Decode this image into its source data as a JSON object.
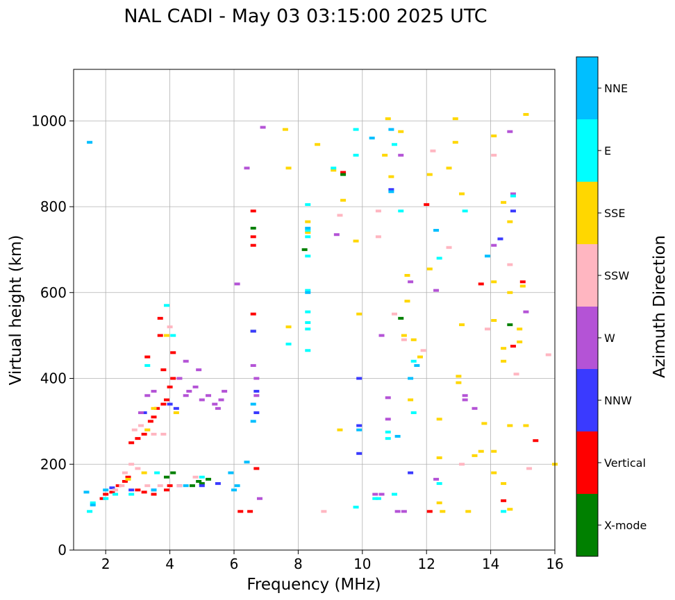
{
  "chart_data": {
    "type": "scatter",
    "title": "NAL CADI - May 03 03:15:00 2025 UTC",
    "xlabel": "Frequency (MHz)",
    "ylabel": "Virtual height (km)",
    "xlim": [
      1,
      16
    ],
    "ylim": [
      0,
      1120
    ],
    "xticks": [
      2,
      4,
      6,
      8,
      10,
      12,
      14,
      16
    ],
    "yticks": [
      0,
      200,
      400,
      600,
      800,
      1000
    ],
    "grid": true,
    "colorbar": {
      "label": "Azimuth Direction",
      "categories": [
        {
          "name": "X-mode",
          "color": "#008000"
        },
        {
          "name": "Vertical",
          "color": "#ff0000"
        },
        {
          "name": "NNW",
          "color": "#3a3aff"
        },
        {
          "name": "W",
          "color": "#b453d6"
        },
        {
          "name": "SSW",
          "color": "#ffb6c1"
        },
        {
          "name": "SSE",
          "color": "#ffd700"
        },
        {
          "name": "E",
          "color": "#00ffff"
        },
        {
          "name": "NNE",
          "color": "#00bfff"
        }
      ]
    },
    "series": [
      {
        "name": "Vertical",
        "points": [
          [
            1.9,
            120
          ],
          [
            2.0,
            130
          ],
          [
            2.2,
            135
          ],
          [
            2.4,
            150
          ],
          [
            2.6,
            160
          ],
          [
            2.7,
            170
          ],
          [
            3.0,
            140
          ],
          [
            3.2,
            135
          ],
          [
            3.5,
            130
          ],
          [
            3.9,
            140
          ],
          [
            4.0,
            150
          ],
          [
            2.8,
            250
          ],
          [
            3.0,
            260
          ],
          [
            3.2,
            270
          ],
          [
            3.4,
            300
          ],
          [
            3.5,
            310
          ],
          [
            3.6,
            330
          ],
          [
            3.8,
            340
          ],
          [
            3.9,
            350
          ],
          [
            4.0,
            380
          ],
          [
            4.1,
            400
          ],
          [
            3.8,
            420
          ],
          [
            3.7,
            500
          ],
          [
            3.7,
            540
          ],
          [
            3.3,
            450
          ],
          [
            4.1,
            460
          ],
          [
            6.6,
            790
          ],
          [
            6.6,
            730
          ],
          [
            6.6,
            710
          ],
          [
            6.6,
            550
          ],
          [
            6.7,
            190
          ],
          [
            6.2,
            90
          ],
          [
            6.5,
            90
          ],
          [
            9.4,
            880
          ],
          [
            12.0,
            805
          ],
          [
            12.1,
            90
          ],
          [
            13.7,
            620
          ],
          [
            14.4,
            115
          ],
          [
            14.7,
            475
          ],
          [
            15.0,
            625
          ],
          [
            15.4,
            255
          ]
        ]
      },
      {
        "name": "X-mode",
        "points": [
          [
            4.9,
            160
          ],
          [
            5.0,
            155
          ],
          [
            4.7,
            150
          ],
          [
            5.2,
            165
          ],
          [
            4.1,
            180
          ],
          [
            3.9,
            170
          ],
          [
            6.6,
            750
          ],
          [
            6.6,
            510
          ],
          [
            8.2,
            700
          ],
          [
            9.4,
            875
          ],
          [
            11.2,
            540
          ],
          [
            14.6,
            525
          ]
        ]
      },
      {
        "name": "NNW",
        "points": [
          [
            2.2,
            145
          ],
          [
            2.8,
            140
          ],
          [
            3.5,
            140
          ],
          [
            4.3,
            150
          ],
          [
            5.0,
            150
          ],
          [
            5.5,
            155
          ],
          [
            4.0,
            340
          ],
          [
            4.2,
            330
          ],
          [
            3.2,
            320
          ],
          [
            6.6,
            510
          ],
          [
            6.7,
            370
          ],
          [
            6.7,
            320
          ],
          [
            9.9,
            400
          ],
          [
            9.9,
            290
          ],
          [
            9.9,
            225
          ],
          [
            10.9,
            840
          ],
          [
            14.7,
            790
          ],
          [
            14.3,
            725
          ],
          [
            11.5,
            180
          ]
        ]
      },
      {
        "name": "W",
        "points": [
          [
            3.3,
            360
          ],
          [
            3.5,
            370
          ],
          [
            4.5,
            360
          ],
          [
            4.6,
            370
          ],
          [
            4.8,
            380
          ],
          [
            5.0,
            350
          ],
          [
            5.2,
            360
          ],
          [
            5.4,
            340
          ],
          [
            5.6,
            350
          ],
          [
            5.7,
            370
          ],
          [
            5.5,
            330
          ],
          [
            4.3,
            400
          ],
          [
            4.5,
            440
          ],
          [
            4.9,
            420
          ],
          [
            3.1,
            320
          ],
          [
            6.6,
            430
          ],
          [
            6.7,
            400
          ],
          [
            6.7,
            360
          ],
          [
            6.1,
            620
          ],
          [
            6.4,
            890
          ],
          [
            6.9,
            985
          ],
          [
            6.8,
            120
          ],
          [
            9.2,
            735
          ],
          [
            10.6,
            500
          ],
          [
            10.8,
            355
          ],
          [
            10.8,
            305
          ],
          [
            10.4,
            130
          ],
          [
            10.6,
            130
          ],
          [
            11.1,
            90
          ],
          [
            11.3,
            90
          ],
          [
            11.2,
            920
          ],
          [
            11.5,
            625
          ],
          [
            12.3,
            605
          ],
          [
            13.2,
            350
          ],
          [
            13.5,
            330
          ],
          [
            14.1,
            710
          ],
          [
            14.6,
            975
          ],
          [
            14.7,
            830
          ],
          [
            15.1,
            555
          ],
          [
            12.3,
            165
          ],
          [
            13.2,
            360
          ]
        ]
      },
      {
        "name": "SSW",
        "points": [
          [
            2.3,
            140
          ],
          [
            2.5,
            150
          ],
          [
            2.6,
            180
          ],
          [
            2.8,
            200
          ],
          [
            3.0,
            190
          ],
          [
            3.3,
            150
          ],
          [
            3.7,
            150
          ],
          [
            2.9,
            280
          ],
          [
            3.1,
            290
          ],
          [
            3.3,
            280
          ],
          [
            3.5,
            270
          ],
          [
            3.8,
            270
          ],
          [
            4.0,
            520
          ],
          [
            4.3,
            150
          ],
          [
            4.8,
            170
          ],
          [
            8.8,
            90
          ],
          [
            9.3,
            780
          ],
          [
            10.5,
            790
          ],
          [
            10.5,
            730
          ],
          [
            11.0,
            550
          ],
          [
            11.3,
            490
          ],
          [
            11.9,
            465
          ],
          [
            12.2,
            930
          ],
          [
            12.7,
            705
          ],
          [
            13.1,
            200
          ],
          [
            13.9,
            515
          ],
          [
            14.1,
            920
          ],
          [
            14.6,
            665
          ],
          [
            14.8,
            410
          ],
          [
            15.2,
            190
          ],
          [
            15.8,
            455
          ]
        ]
      },
      {
        "name": "SSE",
        "points": [
          [
            2.7,
            165
          ],
          [
            3.2,
            180
          ],
          [
            3.3,
            280
          ],
          [
            3.5,
            330
          ],
          [
            3.9,
            500
          ],
          [
            4.2,
            320
          ],
          [
            7.6,
            980
          ],
          [
            7.7,
            890
          ],
          [
            7.7,
            520
          ],
          [
            8.3,
            740
          ],
          [
            8.3,
            765
          ],
          [
            8.6,
            945
          ],
          [
            9.1,
            885
          ],
          [
            9.4,
            815
          ],
          [
            9.3,
            280
          ],
          [
            9.9,
            550
          ],
          [
            9.8,
            720
          ],
          [
            10.8,
            1005
          ],
          [
            10.7,
            920
          ],
          [
            10.9,
            870
          ],
          [
            11.2,
            975
          ],
          [
            11.3,
            500
          ],
          [
            11.4,
            640
          ],
          [
            11.4,
            580
          ],
          [
            11.5,
            350
          ],
          [
            11.6,
            490
          ],
          [
            11.8,
            450
          ],
          [
            12.1,
            875
          ],
          [
            12.1,
            655
          ],
          [
            12.4,
            305
          ],
          [
            12.4,
            215
          ],
          [
            12.4,
            110
          ],
          [
            12.5,
            90
          ],
          [
            12.7,
            890
          ],
          [
            12.9,
            1005
          ],
          [
            12.9,
            950
          ],
          [
            13.1,
            830
          ],
          [
            13.1,
            525
          ],
          [
            13.0,
            405
          ],
          [
            13.0,
            390
          ],
          [
            13.3,
            90
          ],
          [
            13.5,
            220
          ],
          [
            13.7,
            230
          ],
          [
            13.8,
            295
          ],
          [
            14.1,
            965
          ],
          [
            14.1,
            625
          ],
          [
            14.1,
            535
          ],
          [
            14.1,
            230
          ],
          [
            14.1,
            180
          ],
          [
            14.4,
            810
          ],
          [
            14.4,
            470
          ],
          [
            14.4,
            440
          ],
          [
            14.4,
            155
          ],
          [
            14.6,
            765
          ],
          [
            14.6,
            600
          ],
          [
            14.6,
            290
          ],
          [
            14.6,
            95
          ],
          [
            14.9,
            485
          ],
          [
            14.9,
            515
          ],
          [
            15.0,
            615
          ],
          [
            15.1,
            290
          ],
          [
            15.1,
            1015
          ],
          [
            16.0,
            200
          ]
        ]
      },
      {
        "name": "E",
        "points": [
          [
            1.5,
            90
          ],
          [
            1.6,
            110
          ],
          [
            2.0,
            120
          ],
          [
            2.3,
            130
          ],
          [
            2.8,
            130
          ],
          [
            3.6,
            180
          ],
          [
            3.9,
            570
          ],
          [
            3.3,
            430
          ],
          [
            4.1,
            500
          ],
          [
            5.0,
            170
          ],
          [
            8.3,
            805
          ],
          [
            8.3,
            745
          ],
          [
            8.3,
            730
          ],
          [
            8.3,
            685
          ],
          [
            8.3,
            605
          ],
          [
            8.3,
            555
          ],
          [
            8.3,
            530
          ],
          [
            8.3,
            515
          ],
          [
            8.3,
            465
          ],
          [
            7.7,
            480
          ],
          [
            9.1,
            890
          ],
          [
            9.8,
            980
          ],
          [
            9.8,
            920
          ],
          [
            9.8,
            100
          ],
          [
            10.8,
            260
          ],
          [
            10.8,
            275
          ],
          [
            10.5,
            120
          ],
          [
            11.0,
            130
          ],
          [
            11.0,
            945
          ],
          [
            11.2,
            790
          ],
          [
            11.6,
            440
          ],
          [
            11.6,
            320
          ],
          [
            12.4,
            680
          ],
          [
            12.4,
            155
          ],
          [
            13.2,
            790
          ],
          [
            14.4,
            90
          ],
          [
            14.7,
            825
          ],
          [
            10.4,
            120
          ]
        ]
      },
      {
        "name": "NNE",
        "points": [
          [
            1.5,
            950
          ],
          [
            1.4,
            135
          ],
          [
            1.6,
            105
          ],
          [
            2.0,
            140
          ],
          [
            3.5,
            140
          ],
          [
            4.5,
            150
          ],
          [
            5.9,
            180
          ],
          [
            6.1,
            150
          ],
          [
            6.0,
            140
          ],
          [
            6.4,
            205
          ],
          [
            6.6,
            340
          ],
          [
            6.6,
            300
          ],
          [
            8.3,
            600
          ],
          [
            8.3,
            750
          ],
          [
            10.3,
            960
          ],
          [
            10.9,
            980
          ],
          [
            10.9,
            835
          ],
          [
            11.1,
            265
          ],
          [
            11.5,
            400
          ],
          [
            11.7,
            430
          ],
          [
            12.3,
            745
          ],
          [
            13.9,
            685
          ],
          [
            9.9,
            280
          ]
        ]
      }
    ]
  }
}
